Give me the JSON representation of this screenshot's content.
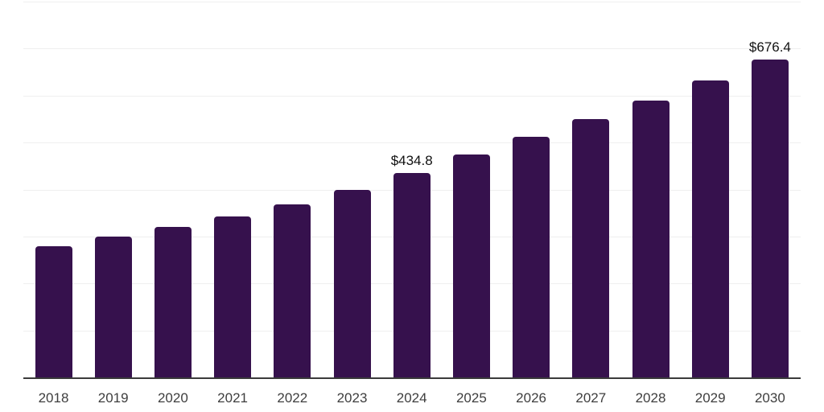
{
  "chart_data": {
    "type": "bar",
    "title": "",
    "xlabel": "",
    "ylabel": "",
    "categories": [
      "2018",
      "2019",
      "2020",
      "2021",
      "2022",
      "2023",
      "2024",
      "2025",
      "2026",
      "2027",
      "2028",
      "2029",
      "2030"
    ],
    "values": [
      279.0,
      299.4,
      320.9,
      342.4,
      368.3,
      399.5,
      434.8,
      475.0,
      511.9,
      550.2,
      589.5,
      632.1,
      676.4
    ],
    "value_labels": [
      "",
      "",
      "",
      "",
      "",
      "",
      "$434.8",
      "",
      "",
      "",
      "",
      "",
      "$676.4"
    ],
    "ylim": [
      0,
      800
    ],
    "grid_interval": 100,
    "grid": "horizontal",
    "legend_position": "none",
    "colors": {
      "bar": "#36114D",
      "background": "#ffffff",
      "axis": "#3b3b3b",
      "gridline": "#efefef",
      "value_label": "#111111",
      "tick_label": "#3e3e3e"
    }
  }
}
